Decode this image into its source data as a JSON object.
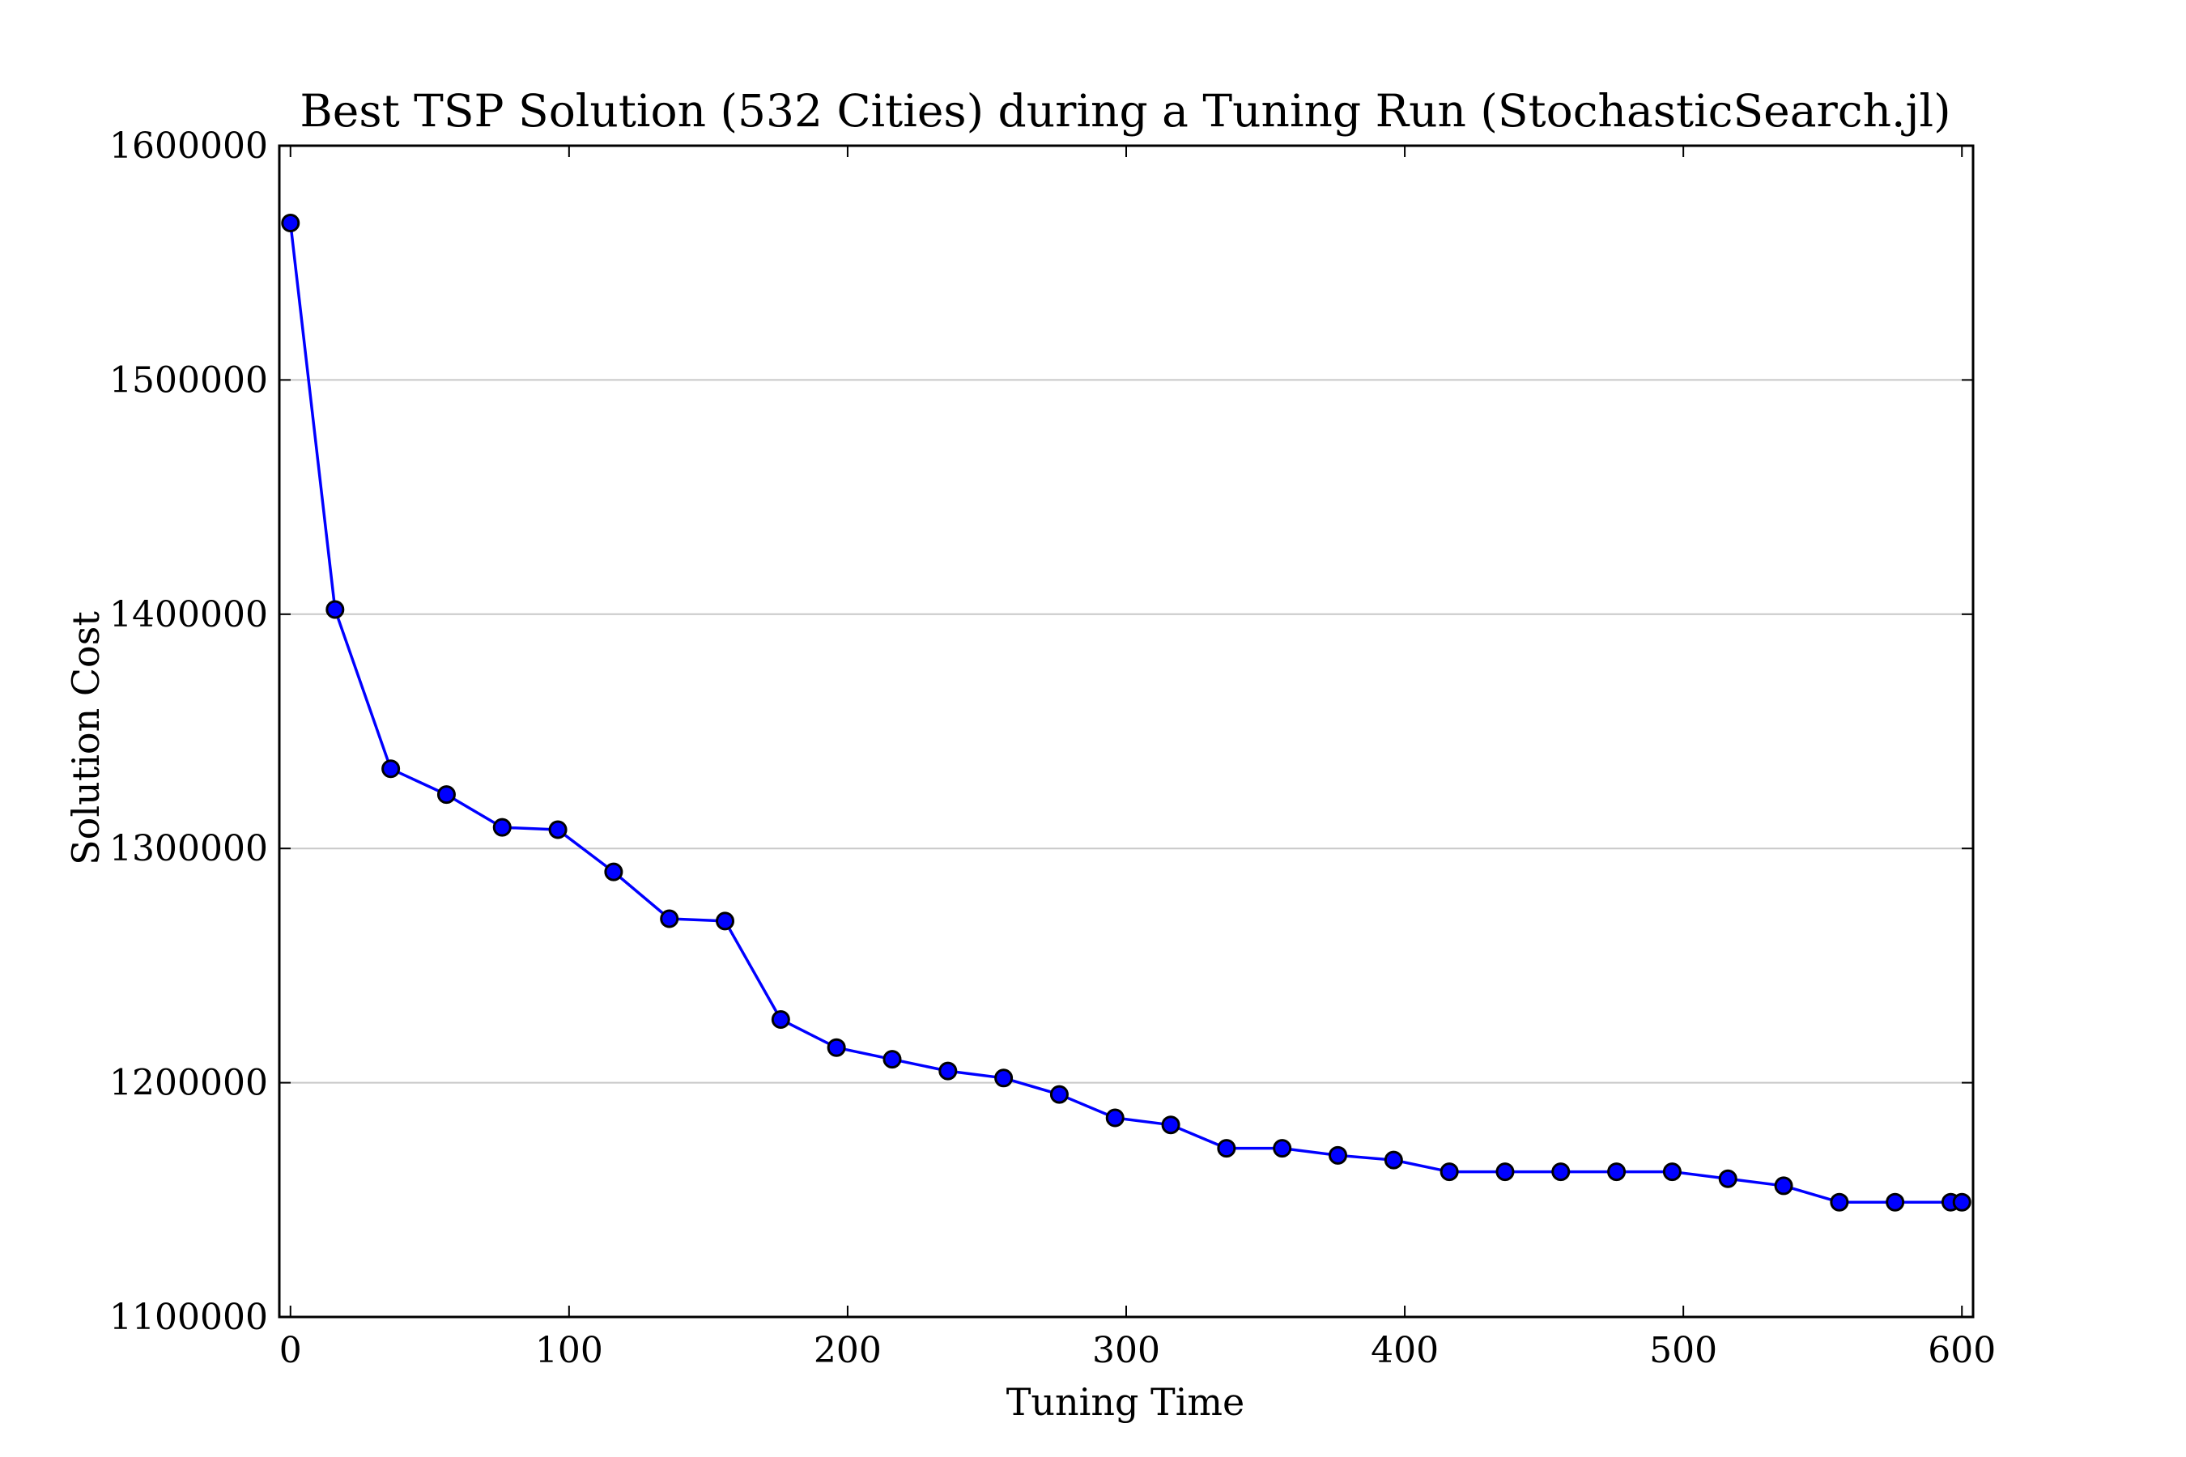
{
  "chart_data": {
    "type": "line",
    "title": "Best TSP Solution (532 Cities) during a Tuning Run (StochasticSearch.jl)",
    "xlabel": "Tuning Time",
    "ylabel": "Solution Cost",
    "xlim": [
      -4,
      604
    ],
    "ylim": [
      1100000,
      1600000
    ],
    "x_ticks": [
      0,
      100,
      200,
      300,
      400,
      500,
      600
    ],
    "x_tick_labels": [
      "0",
      "100",
      "200",
      "300",
      "400",
      "500",
      "600"
    ],
    "y_ticks": [
      1100000,
      1200000,
      1300000,
      1400000,
      1500000,
      1600000
    ],
    "y_tick_labels": [
      "1100000",
      "1200000",
      "1300000",
      "1400000",
      "1500000",
      "1600000"
    ],
    "grid": "horizontal",
    "line_color": "#0000ff",
    "marker_color": "#0000ff",
    "marker_edge_color": "#000000",
    "series": [
      {
        "x": [
          0,
          16,
          36,
          56,
          76,
          96,
          116,
          136,
          156,
          176,
          196,
          216,
          236,
          256,
          276,
          296,
          316,
          336,
          356,
          376,
          396,
          416,
          436,
          456,
          476,
          496,
          516,
          536,
          556,
          576,
          596,
          600
        ],
        "y": [
          1567000,
          1402000,
          1334000,
          1323000,
          1309000,
          1308000,
          1290000,
          1270000,
          1269000,
          1227000,
          1215000,
          1210000,
          1205000,
          1202000,
          1195000,
          1185000,
          1182000,
          1172000,
          1172000,
          1169000,
          1167000,
          1162000,
          1162000,
          1162000,
          1162000,
          1162000,
          1159000,
          1156000,
          1149000,
          1149000,
          1149000,
          1149000
        ]
      }
    ]
  }
}
